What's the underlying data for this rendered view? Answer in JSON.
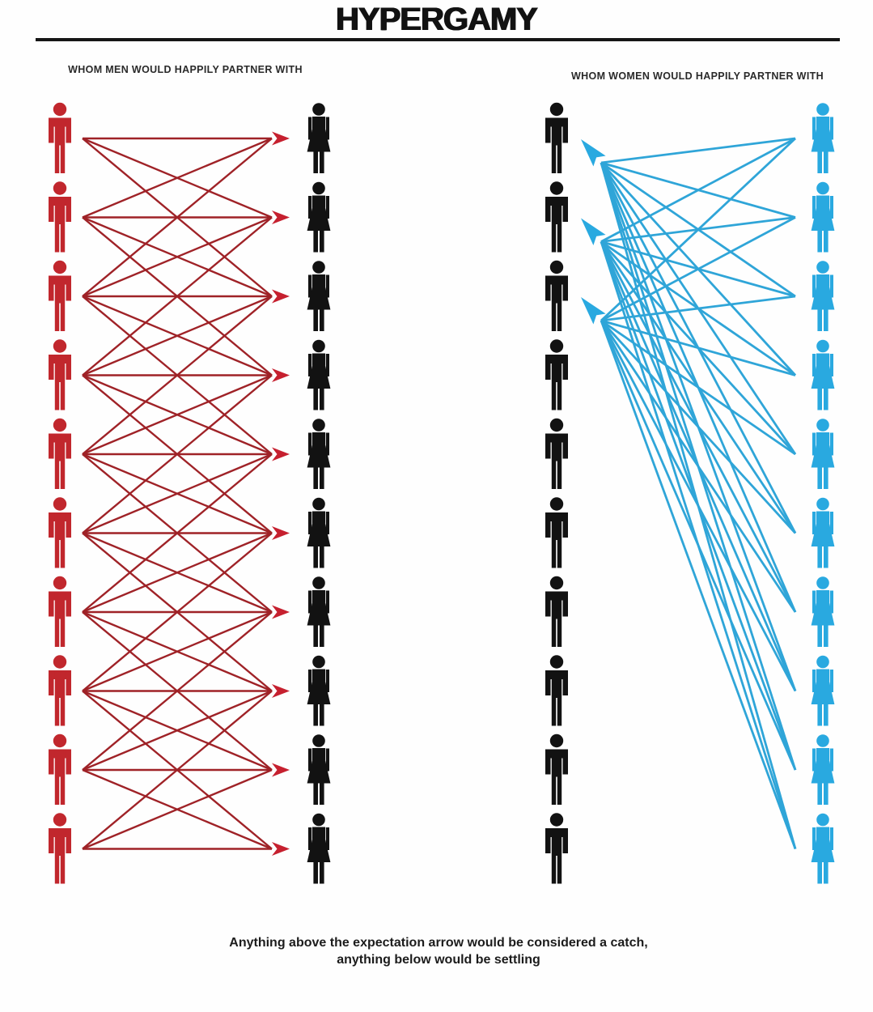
{
  "title": "HYPERGAMY",
  "caption": {
    "line1": "Anything above the expectation arrow would be considered a catch,",
    "line2": "anything below would be settling"
  },
  "colors": {
    "red_figure": "#c1272d",
    "red_line": "#9f2227",
    "red_arrowhead": "#c6202f",
    "black_figure": "#121212",
    "blue_figure": "#29a9e0",
    "blue_line": "#2fa5d8",
    "blue_arrowhead": "#29a9e0",
    "title_color": "#121212"
  },
  "chart_data": {
    "type": "diagram",
    "subtype": "bipartite-preference-network",
    "rows": 10,
    "panels": [
      {
        "id": "men-preferences",
        "heading": "WHOM MEN WOULD HAPPILY PARTNER WITH",
        "source_column": {
          "label": "men",
          "icon": "man",
          "color": "#c1272d",
          "count": 10
        },
        "target_column": {
          "label": "women",
          "icon": "woman",
          "color": "#121212",
          "count": 10
        },
        "arrow_direction": "men-to-women",
        "line_color": "#9f2227",
        "arrowhead_color": "#c6202f",
        "links": [
          {
            "from": 1,
            "to": [
              1,
              2,
              3
            ]
          },
          {
            "from": 2,
            "to": [
              1,
              2,
              3,
              4
            ]
          },
          {
            "from": 3,
            "to": [
              1,
              2,
              3,
              4,
              5
            ]
          },
          {
            "from": 4,
            "to": [
              2,
              3,
              4,
              5,
              6
            ]
          },
          {
            "from": 5,
            "to": [
              3,
              4,
              5,
              6,
              7
            ]
          },
          {
            "from": 6,
            "to": [
              4,
              5,
              6,
              7,
              8
            ]
          },
          {
            "from": 7,
            "to": [
              5,
              6,
              7,
              8,
              9
            ]
          },
          {
            "from": 8,
            "to": [
              6,
              7,
              8,
              9,
              10
            ]
          },
          {
            "from": 9,
            "to": [
              7,
              8,
              9,
              10
            ]
          },
          {
            "from": 10,
            "to": [
              8,
              9,
              10
            ]
          }
        ]
      },
      {
        "id": "women-preferences",
        "heading": "WHOM WOMEN WOULD HAPPILY PARTNER WITH",
        "source_column": {
          "label": "women",
          "icon": "woman",
          "color": "#29a9e0",
          "count": 10
        },
        "target_column": {
          "label": "men",
          "icon": "man",
          "color": "#121212",
          "count": 10
        },
        "arrow_direction": "women-to-men",
        "line_color": "#2fa5d8",
        "arrowhead_color": "#29a9e0",
        "links": [
          {
            "from": 1,
            "to": [
              1,
              2,
              3
            ]
          },
          {
            "from": 2,
            "to": [
              1,
              2,
              3
            ]
          },
          {
            "from": 3,
            "to": [
              1,
              2,
              3
            ]
          },
          {
            "from": 4,
            "to": [
              1,
              2,
              3
            ]
          },
          {
            "from": 5,
            "to": [
              1,
              2,
              3
            ]
          },
          {
            "from": 6,
            "to": [
              1,
              2,
              3
            ]
          },
          {
            "from": 7,
            "to": [
              1,
              2,
              3
            ]
          },
          {
            "from": 8,
            "to": [
              1,
              2,
              3
            ]
          },
          {
            "from": 9,
            "to": [
              1,
              2,
              3
            ]
          },
          {
            "from": 10,
            "to": [
              1,
              2,
              3
            ]
          }
        ]
      }
    ]
  }
}
